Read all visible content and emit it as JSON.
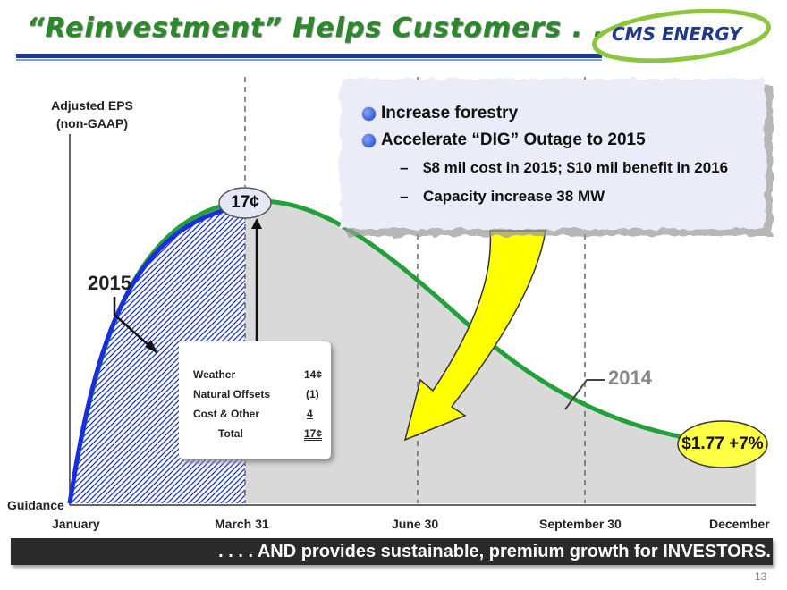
{
  "header": {
    "title": "“Reinvestment” Helps Customers . . . .",
    "logo_text": "CMS ENERGY"
  },
  "chart": {
    "y_axis_label_line1": "Adjusted EPS",
    "y_axis_label_line2": "(non-GAAP)",
    "baseline_label": "Guidance",
    "x_labels": [
      "January",
      "March 31",
      "June 30",
      "September 30",
      "December"
    ],
    "label_2015": "2015",
    "label_2014": "2014",
    "peak_value": "17¢",
    "year_end_value": "$1.77 +7%"
  },
  "callout": {
    "bullets": [
      "Increase forestry",
      "Accelerate “DIG” Outage to 2015"
    ],
    "subbullets": [
      "$8 mil cost in 2015; $10 mil benefit in 2016",
      "Capacity increase 38 MW"
    ]
  },
  "breakdown": {
    "rows": [
      {
        "label": "Weather",
        "value": "14¢"
      },
      {
        "label": "Natural Offsets",
        "value": "(1)"
      },
      {
        "label": "Cost & Other",
        "value": "4"
      }
    ],
    "total_label": "Total",
    "total_value": "17¢"
  },
  "footer": {
    "tagline": ". . . . AND provides sustainable, premium growth for INVESTORS."
  },
  "page_number": "13",
  "colors": {
    "title_green": "#2a8a2a",
    "curve_2014_green": "#22a03a",
    "curve_2015_blue": "#1a2ee0",
    "area_gray": "#d9d9d9",
    "callout_arrow_yellow": "#ffff00",
    "footer_dark": "#2a2a2a",
    "logo_blue": "#1f3a8a"
  }
}
